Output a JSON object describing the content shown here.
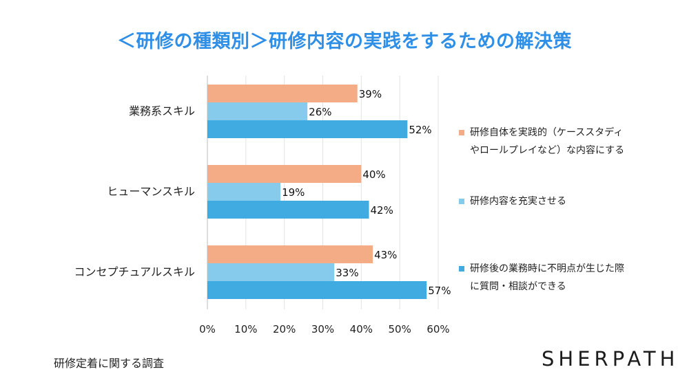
{
  "title": "＜研修の種類別＞研修内容の実践をするための解決策",
  "chart_data": {
    "type": "bar",
    "orientation": "horizontal",
    "categories": [
      "業務系スキル",
      "ヒューマンスキル",
      "コンセプチュアルスキル"
    ],
    "series": [
      {
        "name": "研修自体を実践的（ケーススタディやロールプレイなど）な内容にする",
        "values": [
          39,
          40,
          43
        ],
        "color": "#f4ac86"
      },
      {
        "name": "研修内容を充実させる",
        "values": [
          26,
          19,
          33
        ],
        "color": "#87cbec"
      },
      {
        "name": "研修後の業務時に不明点が生じた際に質問・相談ができる",
        "values": [
          52,
          42,
          57
        ],
        "color": "#40abe0"
      }
    ],
    "value_labels": [
      [
        "39%",
        "40%",
        "43%"
      ],
      [
        "26%",
        "19%",
        "33%"
      ],
      [
        "52%",
        "42%",
        "57%"
      ]
    ],
    "xlim": [
      0,
      60
    ],
    "x_ticks": [
      0,
      10,
      20,
      30,
      40,
      50,
      60
    ],
    "x_tick_labels": [
      "0%",
      "10%",
      "20%",
      "30%",
      "40%",
      "50%",
      "60%"
    ],
    "grid": true,
    "legend_position": "right"
  },
  "legend": {
    "items": [
      {
        "line1": "研修自体を実践的（ケーススタディ",
        "line2": "やロールプレイなど）な内容にする"
      },
      {
        "line1": "研修内容を充実させる",
        "line2": ""
      },
      {
        "line1": "研修後の業務時に不明点が生じた際",
        "line2": "に質問・相談ができる"
      }
    ]
  },
  "source_note": "研修定着に関する調査",
  "brand": "SHERPATH"
}
